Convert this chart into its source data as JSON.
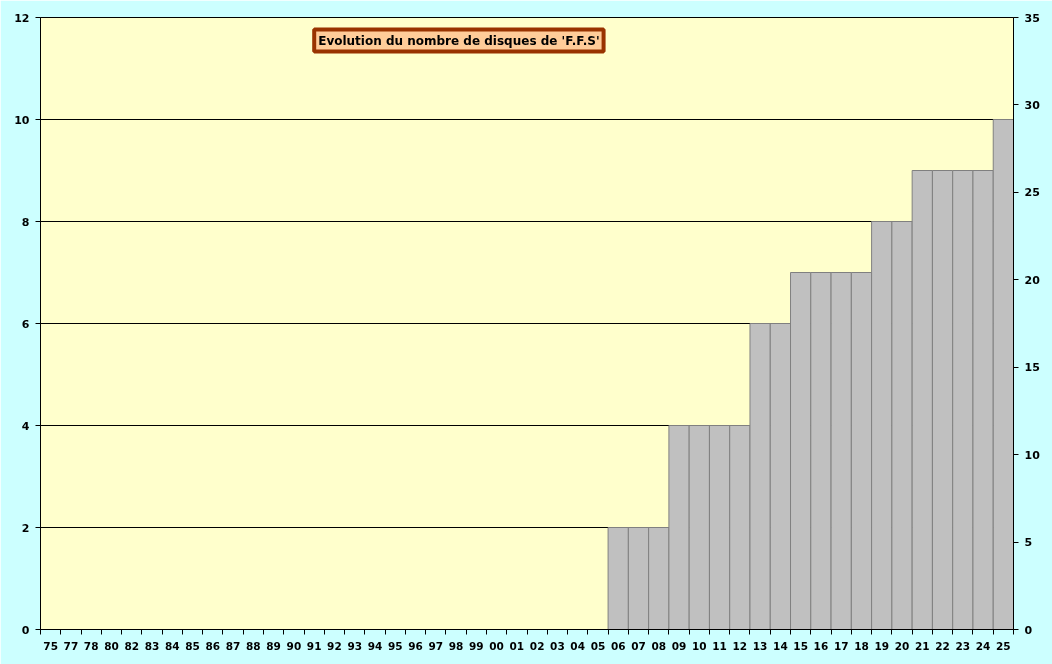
{
  "chart_data": {
    "type": "bar",
    "title": "Evolution du nombre de disques de 'F.F.S'",
    "categories": [
      "75",
      "77",
      "78",
      "80",
      "82",
      "83",
      "84",
      "85",
      "86",
      "87",
      "88",
      "89",
      "90",
      "91",
      "92",
      "93",
      "94",
      "95",
      "96",
      "97",
      "98",
      "99",
      "00",
      "01",
      "02",
      "03",
      "04",
      "05",
      "06",
      "07",
      "08",
      "09",
      "10",
      "11",
      "12",
      "13",
      "14",
      "15",
      "16",
      "17",
      "18",
      "19",
      "20",
      "21",
      "22",
      "23",
      "24",
      "25"
    ],
    "values": [
      null,
      null,
      null,
      null,
      null,
      null,
      null,
      null,
      null,
      null,
      null,
      null,
      null,
      null,
      null,
      null,
      null,
      null,
      null,
      null,
      null,
      null,
      null,
      null,
      null,
      null,
      null,
      null,
      2,
      2,
      2,
      4,
      4,
      4,
      4,
      6,
      6,
      7,
      7,
      7,
      7,
      8,
      8,
      9,
      9,
      9,
      9,
      10
    ],
    "color": "#c0c0c0",
    "ylim": [
      0,
      12
    ],
    "yticks": [
      0,
      2,
      4,
      6,
      8,
      10,
      12
    ],
    "y2lim": [
      0,
      35
    ],
    "y2ticks": [
      0,
      5,
      10,
      15,
      20,
      25,
      30,
      35
    ],
    "grid": "y"
  }
}
